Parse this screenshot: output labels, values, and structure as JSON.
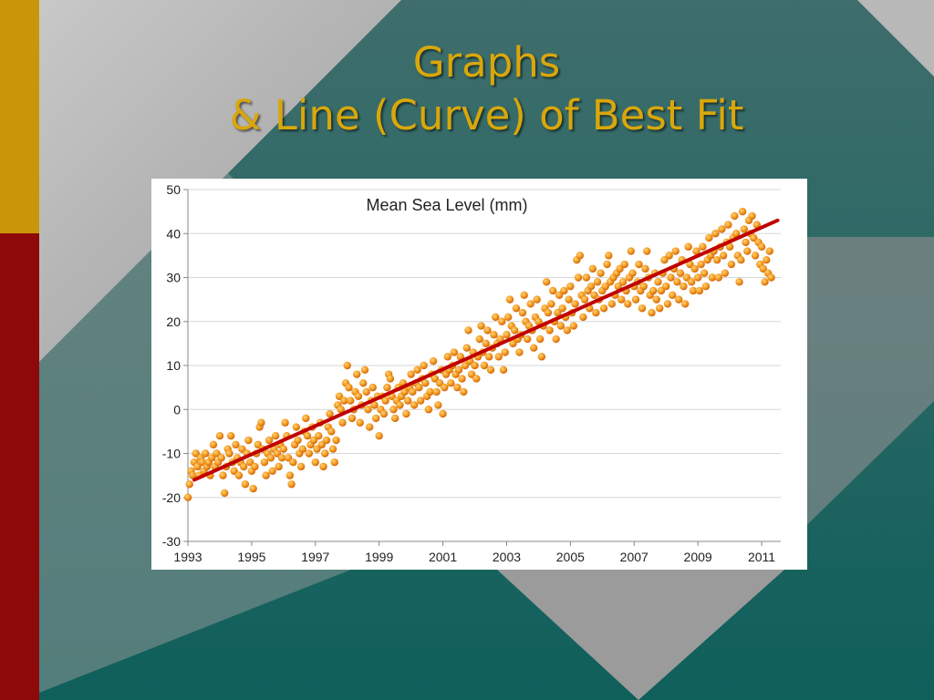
{
  "slide": {
    "title_line1": "Graphs",
    "title_line2": "& Line (Curve) of Best Fit",
    "colors": {
      "gold_bar": "#c9960a",
      "red_bar": "#8e0a0a",
      "title": "#d9a70b",
      "point_fill": "#f08a16",
      "trend_line": "#c00000"
    }
  },
  "chart_data": {
    "type": "scatter",
    "title": "Mean Sea Level (mm)",
    "xlabel": "",
    "ylabel": "",
    "xlim": [
      1993,
      2011.6
    ],
    "ylim": [
      -30,
      50
    ],
    "x_ticks": [
      1993,
      1995,
      1997,
      1999,
      2001,
      2003,
      2005,
      2007,
      2009,
      2011
    ],
    "y_ticks": [
      -30,
      -20,
      -10,
      0,
      10,
      20,
      30,
      40,
      50
    ],
    "grid": "horizontal",
    "legend": "none",
    "trend_line": {
      "x": [
        1993.2,
        2011.5
      ],
      "y": [
        -16,
        43
      ]
    },
    "points": [
      [
        1993.0,
        -20
      ],
      [
        1993.05,
        -17
      ],
      [
        1993.1,
        -14
      ],
      [
        1993.15,
        -15
      ],
      [
        1993.2,
        -12
      ],
      [
        1993.25,
        -10
      ],
      [
        1993.3,
        -13
      ],
      [
        1993.35,
        -15
      ],
      [
        1993.4,
        -11
      ],
      [
        1993.45,
        -12
      ],
      [
        1993.5,
        -14
      ],
      [
        1993.55,
        -10
      ],
      [
        1993.6,
        -13
      ],
      [
        1993.65,
        -12
      ],
      [
        1993.7,
        -15
      ],
      [
        1993.75,
        -11
      ],
      [
        1993.8,
        -8
      ],
      [
        1993.85,
        -13
      ],
      [
        1993.9,
        -10
      ],
      [
        1993.95,
        -12
      ],
      [
        1994.0,
        -6
      ],
      [
        1994.05,
        -11
      ],
      [
        1994.1,
        -15
      ],
      [
        1994.15,
        -19
      ],
      [
        1994.2,
        -13
      ],
      [
        1994.25,
        -9
      ],
      [
        1994.3,
        -10
      ],
      [
        1994.35,
        -6
      ],
      [
        1994.4,
        -12
      ],
      [
        1994.45,
        -14
      ],
      [
        1994.5,
        -8
      ],
      [
        1994.55,
        -11
      ],
      [
        1994.6,
        -15
      ],
      [
        1994.65,
        -12
      ],
      [
        1994.7,
        -9
      ],
      [
        1994.75,
        -13
      ],
      [
        1994.8,
        -17
      ],
      [
        1994.85,
        -10
      ],
      [
        1994.9,
        -7
      ],
      [
        1994.95,
        -12
      ],
      [
        1995.0,
        -14
      ],
      [
        1995.05,
        -18
      ],
      [
        1995.1,
        -13
      ],
      [
        1995.15,
        -10
      ],
      [
        1995.2,
        -8
      ],
      [
        1995.25,
        -4
      ],
      [
        1995.3,
        -3
      ],
      [
        1995.35,
        -9
      ],
      [
        1995.4,
        -12
      ],
      [
        1995.45,
        -15
      ],
      [
        1995.5,
        -10
      ],
      [
        1995.55,
        -7
      ],
      [
        1995.6,
        -11
      ],
      [
        1995.65,
        -14
      ],
      [
        1995.7,
        -9
      ],
      [
        1995.75,
        -6
      ],
      [
        1995.8,
        -10
      ],
      [
        1995.85,
        -13
      ],
      [
        1995.9,
        -8
      ],
      [
        1995.95,
        -11
      ],
      [
        1996.0,
        -9
      ],
      [
        1996.05,
        -3
      ],
      [
        1996.1,
        -6
      ],
      [
        1996.15,
        -11
      ],
      [
        1996.2,
        -15
      ],
      [
        1996.25,
        -17
      ],
      [
        1996.3,
        -12
      ],
      [
        1996.35,
        -8
      ],
      [
        1996.4,
        -4
      ],
      [
        1996.45,
        -7
      ],
      [
        1996.5,
        -10
      ],
      [
        1996.55,
        -13
      ],
      [
        1996.6,
        -9
      ],
      [
        1996.65,
        -5
      ],
      [
        1996.7,
        -2
      ],
      [
        1996.75,
        -6
      ],
      [
        1996.8,
        -10
      ],
      [
        1996.85,
        -8
      ],
      [
        1996.9,
        -4
      ],
      [
        1996.95,
        -7
      ],
      [
        1997.0,
        -12
      ],
      [
        1997.05,
        -9
      ],
      [
        1997.1,
        -6
      ],
      [
        1997.15,
        -3
      ],
      [
        1997.2,
        -8
      ],
      [
        1997.25,
        -13
      ],
      [
        1997.3,
        -10
      ],
      [
        1997.35,
        -7
      ],
      [
        1997.4,
        -4
      ],
      [
        1997.45,
        -1
      ],
      [
        1997.5,
        -5
      ],
      [
        1997.55,
        -9
      ],
      [
        1997.6,
        -12
      ],
      [
        1997.65,
        -7
      ],
      [
        1997.7,
        1
      ],
      [
        1997.75,
        3
      ],
      [
        1997.8,
        0
      ],
      [
        1997.85,
        -3
      ],
      [
        1997.9,
        2
      ],
      [
        1997.95,
        6
      ],
      [
        1998.0,
        10
      ],
      [
        1998.05,
        5
      ],
      [
        1998.1,
        2
      ],
      [
        1998.15,
        -2
      ],
      [
        1998.2,
        0
      ],
      [
        1998.25,
        4
      ],
      [
        1998.3,
        8
      ],
      [
        1998.35,
        3
      ],
      [
        1998.4,
        -3
      ],
      [
        1998.45,
        1
      ],
      [
        1998.5,
        6
      ],
      [
        1998.55,
        9
      ],
      [
        1998.6,
        4
      ],
      [
        1998.65,
        0
      ],
      [
        1998.7,
        -4
      ],
      [
        1998.75,
        2
      ],
      [
        1998.8,
        5
      ],
      [
        1998.85,
        1
      ],
      [
        1998.9,
        -2
      ],
      [
        1998.95,
        3
      ],
      [
        1999.0,
        -6
      ],
      [
        1999.05,
        0
      ],
      [
        1999.1,
        3
      ],
      [
        1999.15,
        -1
      ],
      [
        1999.2,
        2
      ],
      [
        1999.25,
        5
      ],
      [
        1999.3,
        8
      ],
      [
        1999.35,
        7
      ],
      [
        1999.4,
        3
      ],
      [
        1999.45,
        0
      ],
      [
        1999.5,
        -2
      ],
      [
        1999.55,
        2
      ],
      [
        1999.6,
        5
      ],
      [
        1999.65,
        1
      ],
      [
        1999.7,
        3
      ],
      [
        1999.75,
        6
      ],
      [
        1999.8,
        4
      ],
      [
        1999.85,
        -1
      ],
      [
        1999.9,
        2
      ],
      [
        1999.95,
        5
      ],
      [
        2000.0,
        8
      ],
      [
        2000.05,
        4
      ],
      [
        2000.1,
        1
      ],
      [
        2000.15,
        6
      ],
      [
        2000.2,
        9
      ],
      [
        2000.25,
        5
      ],
      [
        2000.3,
        2
      ],
      [
        2000.35,
        7
      ],
      [
        2000.4,
        10
      ],
      [
        2000.45,
        6
      ],
      [
        2000.5,
        3
      ],
      [
        2000.55,
        0
      ],
      [
        2000.6,
        4
      ],
      [
        2000.65,
        8
      ],
      [
        2000.7,
        11
      ],
      [
        2000.75,
        7
      ],
      [
        2000.8,
        4
      ],
      [
        2000.85,
        1
      ],
      [
        2000.9,
        6
      ],
      [
        2000.95,
        9
      ],
      [
        2001.0,
        -1
      ],
      [
        2001.05,
        5
      ],
      [
        2001.1,
        8
      ],
      [
        2001.15,
        12
      ],
      [
        2001.2,
        9
      ],
      [
        2001.25,
        6
      ],
      [
        2001.3,
        10
      ],
      [
        2001.35,
        13
      ],
      [
        2001.4,
        8
      ],
      [
        2001.45,
        5
      ],
      [
        2001.5,
        9
      ],
      [
        2001.55,
        12
      ],
      [
        2001.6,
        7
      ],
      [
        2001.65,
        4
      ],
      [
        2001.7,
        10
      ],
      [
        2001.75,
        14
      ],
      [
        2001.8,
        18
      ],
      [
        2001.85,
        11
      ],
      [
        2001.9,
        8
      ],
      [
        2001.95,
        13
      ],
      [
        2002.0,
        10
      ],
      [
        2002.05,
        7
      ],
      [
        2002.1,
        12
      ],
      [
        2002.15,
        16
      ],
      [
        2002.2,
        19
      ],
      [
        2002.25,
        13
      ],
      [
        2002.3,
        10
      ],
      [
        2002.35,
        15
      ],
      [
        2002.4,
        18
      ],
      [
        2002.45,
        12
      ],
      [
        2002.5,
        9
      ],
      [
        2002.55,
        14
      ],
      [
        2002.6,
        17
      ],
      [
        2002.65,
        21
      ],
      [
        2002.7,
        15
      ],
      [
        2002.75,
        12
      ],
      [
        2002.8,
        16
      ],
      [
        2002.85,
        20
      ],
      [
        2002.9,
        9
      ],
      [
        2002.95,
        13
      ],
      [
        2003.0,
        17
      ],
      [
        2003.05,
        21
      ],
      [
        2003.1,
        25
      ],
      [
        2003.15,
        19
      ],
      [
        2003.2,
        15
      ],
      [
        2003.25,
        18
      ],
      [
        2003.3,
        23
      ],
      [
        2003.35,
        16
      ],
      [
        2003.4,
        13
      ],
      [
        2003.45,
        17
      ],
      [
        2003.5,
        22
      ],
      [
        2003.55,
        26
      ],
      [
        2003.6,
        20
      ],
      [
        2003.65,
        16
      ],
      [
        2003.7,
        19
      ],
      [
        2003.75,
        24
      ],
      [
        2003.8,
        18
      ],
      [
        2003.85,
        14
      ],
      [
        2003.9,
        21
      ],
      [
        2003.95,
        25
      ],
      [
        2004.0,
        20
      ],
      [
        2004.05,
        16
      ],
      [
        2004.1,
        12
      ],
      [
        2004.15,
        19
      ],
      [
        2004.2,
        23
      ],
      [
        2004.25,
        29
      ],
      [
        2004.3,
        22
      ],
      [
        2004.35,
        18
      ],
      [
        2004.4,
        24
      ],
      [
        2004.45,
        27
      ],
      [
        2004.5,
        20
      ],
      [
        2004.55,
        16
      ],
      [
        2004.6,
        22
      ],
      [
        2004.65,
        26
      ],
      [
        2004.7,
        19
      ],
      [
        2004.75,
        23
      ],
      [
        2004.8,
        27
      ],
      [
        2004.85,
        21
      ],
      [
        2004.9,
        18
      ],
      [
        2004.95,
        25
      ],
      [
        2005.0,
        28
      ],
      [
        2005.05,
        22
      ],
      [
        2005.1,
        19
      ],
      [
        2005.15,
        24
      ],
      [
        2005.2,
        34
      ],
      [
        2005.25,
        30
      ],
      [
        2005.3,
        35
      ],
      [
        2005.35,
        26
      ],
      [
        2005.4,
        21
      ],
      [
        2005.45,
        25
      ],
      [
        2005.5,
        30
      ],
      [
        2005.55,
        27
      ],
      [
        2005.6,
        23
      ],
      [
        2005.65,
        28
      ],
      [
        2005.7,
        32
      ],
      [
        2005.75,
        26
      ],
      [
        2005.8,
        22
      ],
      [
        2005.85,
        29
      ],
      [
        2005.9,
        25
      ],
      [
        2005.95,
        31
      ],
      [
        2006.0,
        27
      ],
      [
        2006.05,
        23
      ],
      [
        2006.1,
        28
      ],
      [
        2006.15,
        33
      ],
      [
        2006.2,
        35
      ],
      [
        2006.25,
        29
      ],
      [
        2006.3,
        24
      ],
      [
        2006.35,
        30
      ],
      [
        2006.4,
        26
      ],
      [
        2006.45,
        31
      ],
      [
        2006.5,
        28
      ],
      [
        2006.55,
        32
      ],
      [
        2006.6,
        25
      ],
      [
        2006.65,
        29
      ],
      [
        2006.7,
        33
      ],
      [
        2006.75,
        27
      ],
      [
        2006.8,
        24
      ],
      [
        2006.85,
        30
      ],
      [
        2006.9,
        36
      ],
      [
        2006.95,
        31
      ],
      [
        2007.0,
        28
      ],
      [
        2007.05,
        25
      ],
      [
        2007.1,
        29
      ],
      [
        2007.15,
        33
      ],
      [
        2007.2,
        27
      ],
      [
        2007.25,
        23
      ],
      [
        2007.3,
        28
      ],
      [
        2007.35,
        32
      ],
      [
        2007.4,
        36
      ],
      [
        2007.45,
        30
      ],
      [
        2007.5,
        26
      ],
      [
        2007.55,
        22
      ],
      [
        2007.6,
        27
      ],
      [
        2007.65,
        31
      ],
      [
        2007.7,
        25
      ],
      [
        2007.75,
        29
      ],
      [
        2007.8,
        23
      ],
      [
        2007.85,
        27
      ],
      [
        2007.9,
        31
      ],
      [
        2007.95,
        34
      ],
      [
        2008.0,
        28
      ],
      [
        2008.05,
        24
      ],
      [
        2008.1,
        35
      ],
      [
        2008.15,
        30
      ],
      [
        2008.2,
        26
      ],
      [
        2008.25,
        32
      ],
      [
        2008.3,
        36
      ],
      [
        2008.35,
        29
      ],
      [
        2008.4,
        25
      ],
      [
        2008.45,
        31
      ],
      [
        2008.5,
        34
      ],
      [
        2008.55,
        28
      ],
      [
        2008.6,
        24
      ],
      [
        2008.65,
        30
      ],
      [
        2008.7,
        37
      ],
      [
        2008.75,
        33
      ],
      [
        2008.8,
        29
      ],
      [
        2008.85,
        27
      ],
      [
        2008.9,
        32
      ],
      [
        2008.95,
        36
      ],
      [
        2009.0,
        30
      ],
      [
        2009.05,
        27
      ],
      [
        2009.1,
        33
      ],
      [
        2009.15,
        37
      ],
      [
        2009.2,
        31
      ],
      [
        2009.25,
        28
      ],
      [
        2009.3,
        34
      ],
      [
        2009.35,
        39
      ],
      [
        2009.4,
        35
      ],
      [
        2009.45,
        30
      ],
      [
        2009.5,
        36
      ],
      [
        2009.55,
        40
      ],
      [
        2009.6,
        34
      ],
      [
        2009.65,
        30
      ],
      [
        2009.7,
        37
      ],
      [
        2009.75,
        41
      ],
      [
        2009.8,
        35
      ],
      [
        2009.85,
        31
      ],
      [
        2009.9,
        38
      ],
      [
        2009.95,
        42
      ],
      [
        2010.0,
        37
      ],
      [
        2010.05,
        33
      ],
      [
        2010.1,
        39
      ],
      [
        2010.15,
        44
      ],
      [
        2010.2,
        40
      ],
      [
        2010.25,
        35
      ],
      [
        2010.3,
        29
      ],
      [
        2010.35,
        34
      ],
      [
        2010.4,
        45
      ],
      [
        2010.45,
        41
      ],
      [
        2010.5,
        38
      ],
      [
        2010.55,
        36
      ],
      [
        2010.6,
        43
      ],
      [
        2010.65,
        40
      ],
      [
        2010.7,
        44
      ],
      [
        2010.75,
        39
      ],
      [
        2010.8,
        35
      ],
      [
        2010.85,
        42
      ],
      [
        2010.9,
        38
      ],
      [
        2010.95,
        33
      ],
      [
        2011.0,
        37
      ],
      [
        2011.05,
        32
      ],
      [
        2011.1,
        29
      ],
      [
        2011.15,
        34
      ],
      [
        2011.2,
        31
      ],
      [
        2011.25,
        36
      ],
      [
        2011.3,
        30
      ]
    ]
  }
}
